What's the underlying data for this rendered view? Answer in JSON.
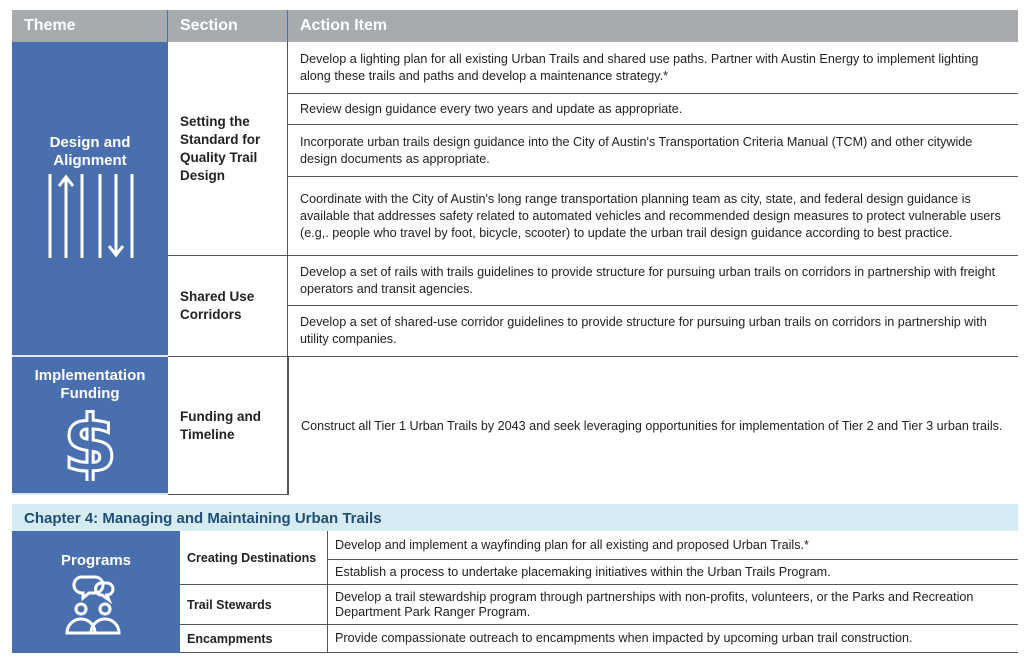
{
  "table1": {
    "headers": [
      "Theme",
      "Section",
      "Action Item"
    ],
    "themes": [
      {
        "label": "Design and Alignment",
        "icon": "two-way-trail-icon"
      },
      {
        "label": "Implementation Funding",
        "icon": "dollar-icon"
      }
    ],
    "sections": [
      "Setting the Standard for Quality Trail Design",
      "Shared Use Corridors",
      "Funding and Timeline"
    ],
    "actions": [
      "Develop a lighting plan for all existing Urban Trails and shared use paths. Partner with Austin Energy to implement lighting along these trails and paths and develop a maintenance strategy.*",
      "Review design guidance every two years and update as appropriate.",
      "Incorporate urban trails design guidance into the City of Austin's Transportation Criteria Manual (TCM) and other citywide design documents as appropriate.",
      "Coordinate with the City of Austin's long range transportation planning team as city, state, and federal design guidance is available that addresses safety related to automated vehicles and recommended design measures to protect vulnerable users (e.g,. people who travel by foot, bicycle, scooter) to update the urban trail design guidance according to best practice.",
      "Develop a set of rails with trails guidelines to provide structure for pursuing urban trails on corridors in partnership with freight operators and transit agencies.",
      "Develop a set of shared-use corridor guidelines to provide structure for pursuing urban trails on corridors in partnership with utility companies.",
      "Construct all Tier 1 Urban Trails by 2043 and seek leveraging opportunities for implementation of Tier 2 and Tier 3 urban trails."
    ]
  },
  "chapter": {
    "title": "Chapter 4: Managing and Maintaining Urban Trails"
  },
  "table2": {
    "theme": {
      "label": "Programs",
      "icon": "people-conversation-icon"
    },
    "sections": [
      "Creating Destinations",
      "Trail Stewards",
      "Encampments"
    ],
    "actions": [
      "Develop and implement a wayfinding plan for all existing and proposed Urban Trails.*",
      "Establish a process to undertake placemaking initiatives within the Urban Trails Program.",
      "Develop a trail stewardship program through partnerships with non-profits, volunteers, or the Parks and Recreation Department Park Ranger Program.",
      "Provide compassionate outreach to encampments when impacted by upcoming urban trail construction."
    ]
  },
  "colors": {
    "header": "#a7abae",
    "theme": "#4a6fae",
    "chapter_bg": "#d6ebf4",
    "chapter_text": "#1f4e79"
  }
}
